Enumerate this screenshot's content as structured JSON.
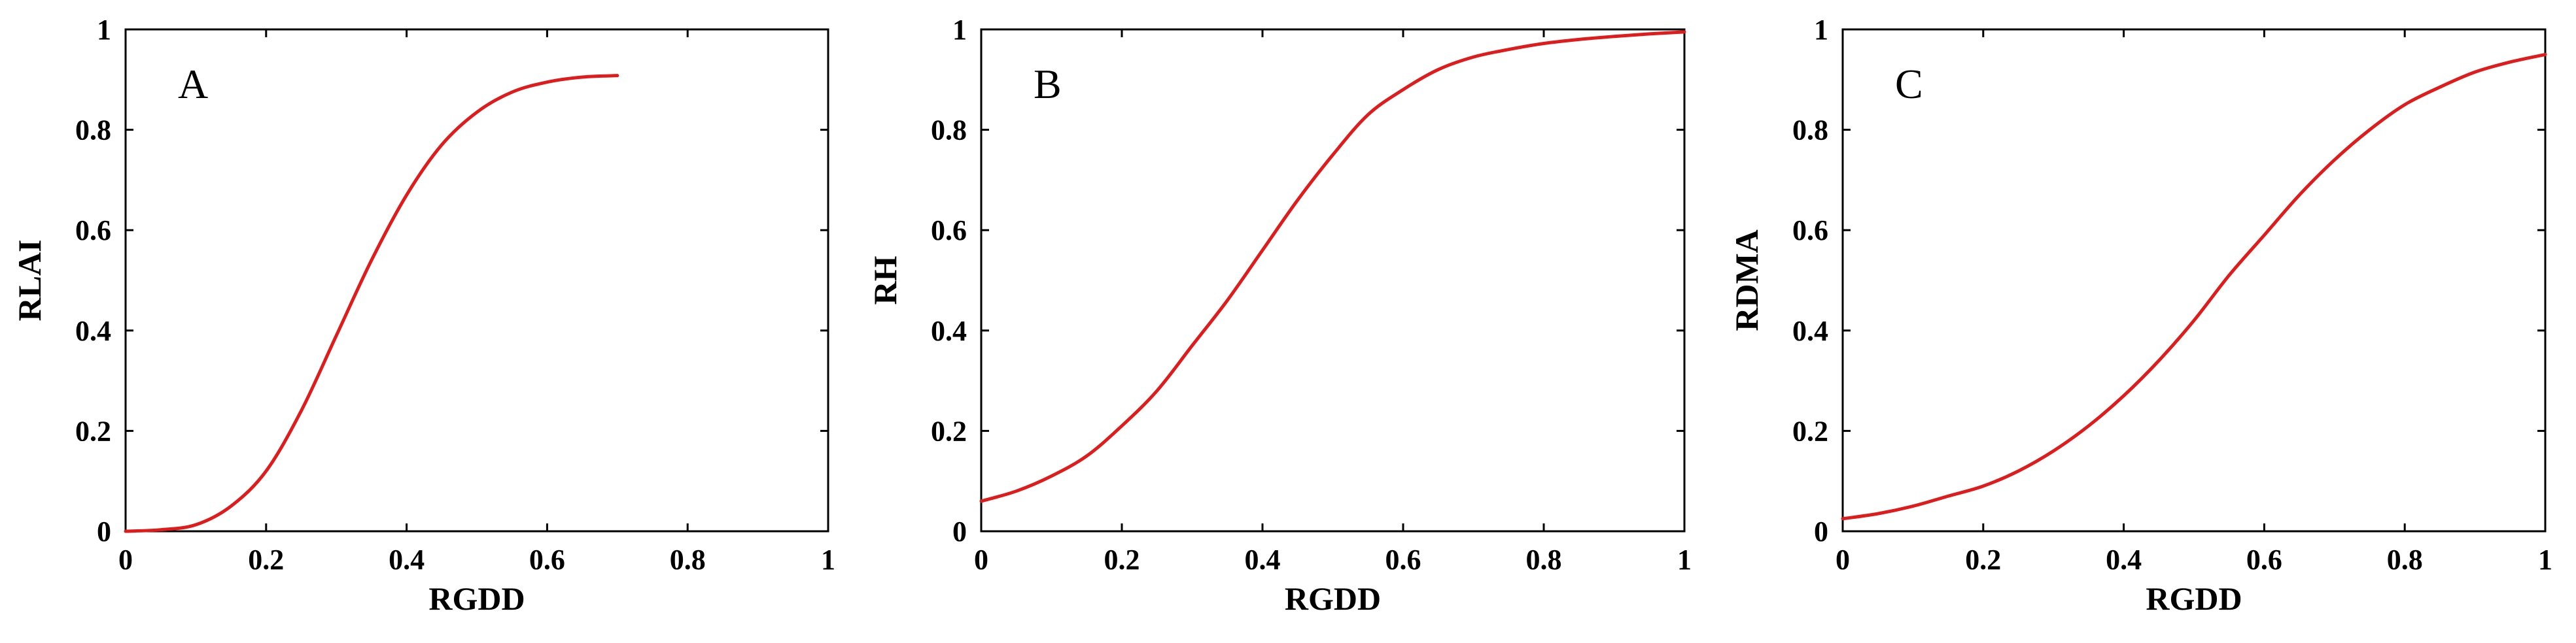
{
  "chart_data": [
    {
      "type": "line",
      "panel_label": "A",
      "xlabel": "RGDD",
      "ylabel": "RLAI",
      "xlim": [
        0,
        1
      ],
      "ylim": [
        0,
        1
      ],
      "xticks": [
        "0",
        "0.2",
        "0.4",
        "0.6",
        "0.8",
        "1"
      ],
      "yticks": [
        "0",
        "0.2",
        "0.4",
        "0.6",
        "0.8",
        "1"
      ],
      "grid": false,
      "line_color": "#e01b1b",
      "series": [
        {
          "x": [
            0,
            0.05,
            0.1,
            0.15,
            0.2,
            0.25,
            0.3,
            0.35,
            0.4,
            0.45,
            0.5,
            0.55,
            0.6,
            0.65,
            0.7
          ],
          "y": [
            0,
            0.003,
            0.013,
            0.05,
            0.12,
            0.24,
            0.39,
            0.54,
            0.67,
            0.77,
            0.835,
            0.875,
            0.895,
            0.905,
            0.908
          ]
        }
      ]
    },
    {
      "type": "line",
      "panel_label": "B",
      "xlabel": "RGDD",
      "ylabel": "RH",
      "xlim": [
        0,
        1
      ],
      "ylim": [
        0,
        1
      ],
      "xticks": [
        "0",
        "0.2",
        "0.4",
        "0.6",
        "0.8",
        "1"
      ],
      "yticks": [
        "0",
        "0.2",
        "0.4",
        "0.6",
        "0.8",
        "1"
      ],
      "grid": false,
      "line_color": "#e01b1b",
      "series": [
        {
          "x": [
            0,
            0.05,
            0.1,
            0.15,
            0.2,
            0.25,
            0.3,
            0.35,
            0.4,
            0.45,
            0.5,
            0.55,
            0.6,
            0.65,
            0.7,
            0.75,
            0.8,
            0.85,
            0.9,
            0.95,
            1.0
          ],
          "y": [
            0.06,
            0.08,
            0.11,
            0.15,
            0.21,
            0.28,
            0.37,
            0.46,
            0.56,
            0.66,
            0.75,
            0.83,
            0.88,
            0.92,
            0.945,
            0.96,
            0.972,
            0.98,
            0.986,
            0.991,
            0.995
          ]
        }
      ]
    },
    {
      "type": "line",
      "panel_label": "C",
      "xlabel": "RGDD",
      "ylabel": "RDMA",
      "xlim": [
        0,
        1
      ],
      "ylim": [
        0,
        1
      ],
      "xticks": [
        "0",
        "0.2",
        "0.4",
        "0.6",
        "0.8",
        "1"
      ],
      "yticks": [
        "0",
        "0.2",
        "0.4",
        "0.6",
        "0.8",
        "1"
      ],
      "grid": false,
      "line_color": "#e01b1b",
      "series": [
        {
          "x": [
            0,
            0.05,
            0.1,
            0.15,
            0.2,
            0.25,
            0.3,
            0.35,
            0.4,
            0.45,
            0.5,
            0.55,
            0.6,
            0.65,
            0.7,
            0.75,
            0.8,
            0.85,
            0.9,
            0.95,
            1.0
          ],
          "y": [
            0.025,
            0.035,
            0.05,
            0.07,
            0.09,
            0.12,
            0.16,
            0.21,
            0.27,
            0.34,
            0.42,
            0.51,
            0.59,
            0.67,
            0.74,
            0.8,
            0.85,
            0.885,
            0.915,
            0.935,
            0.95
          ]
        }
      ]
    }
  ]
}
